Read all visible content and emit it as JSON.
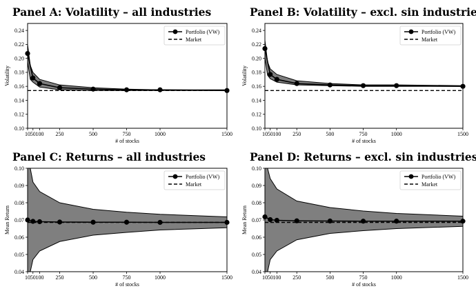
{
  "chart_data": [
    {
      "type": "line",
      "title": "Panel A: Volatility – all industries",
      "xlabel": "# of stocks",
      "ylabel": "Volatility",
      "xlim": [
        10,
        1500
      ],
      "ylim": [
        0.1,
        0.25
      ],
      "xticks": [
        "10",
        "50",
        "100",
        "250",
        "500",
        "750",
        "1000",
        "1500"
      ],
      "xtick_values": [
        10,
        50,
        100,
        250,
        500,
        750,
        1000,
        1500
      ],
      "yticks": [
        "0.10",
        "0.12",
        "0.14",
        "0.16",
        "0.18",
        "0.20",
        "0.22",
        "0.24"
      ],
      "ytick_values": [
        0.1,
        0.12,
        0.14,
        0.16,
        0.18,
        0.2,
        0.22,
        0.24
      ],
      "legend": {
        "position": "top-right",
        "entries": [
          "Portfolio (VW)",
          "Market"
        ]
      },
      "series": [
        {
          "name": "Portfolio (VW)",
          "style": "solid-marker",
          "x": [
            10,
            50,
            100,
            250,
            500,
            750,
            1000,
            1500
          ],
          "values": [
            0.207,
            0.172,
            0.164,
            0.158,
            0.156,
            0.155,
            0.155,
            0.154
          ]
        },
        {
          "name": "Market",
          "style": "dashed",
          "x": [
            10,
            1500
          ],
          "values": [
            0.154,
            0.154
          ]
        }
      ],
      "band": {
        "x": [
          10,
          30,
          50,
          100,
          250,
          500,
          750,
          1000,
          1500
        ],
        "upper": [
          0.22,
          0.19,
          0.18,
          0.17,
          0.162,
          0.158,
          0.156,
          0.155,
          0.155
        ],
        "lower": [
          0.195,
          0.17,
          0.166,
          0.159,
          0.155,
          0.154,
          0.154,
          0.154,
          0.154
        ]
      }
    },
    {
      "type": "line",
      "title": "Panel B: Volatility – excl. sin industries",
      "xlabel": "# of stocks",
      "ylabel": "Volatility",
      "xlim": [
        10,
        1500
      ],
      "ylim": [
        0.1,
        0.25
      ],
      "xticks": [
        "10",
        "50",
        "100",
        "250",
        "500",
        "750",
        "1000",
        "1500"
      ],
      "xtick_values": [
        10,
        50,
        100,
        250,
        500,
        750,
        1000,
        1500
      ],
      "yticks": [
        "0.10",
        "0.12",
        "0.14",
        "0.16",
        "0.18",
        "0.20",
        "0.22",
        "0.24"
      ],
      "ytick_values": [
        0.1,
        0.12,
        0.14,
        0.16,
        0.18,
        0.2,
        0.22,
        0.24
      ],
      "legend": {
        "position": "top-right",
        "entries": [
          "Portfolio (VW)",
          "Market"
        ]
      },
      "series": [
        {
          "name": "Portfolio (VW)",
          "style": "solid-marker",
          "x": [
            10,
            50,
            100,
            250,
            500,
            750,
            1000,
            1500
          ],
          "values": [
            0.214,
            0.177,
            0.17,
            0.164,
            0.162,
            0.161,
            0.161,
            0.16
          ]
        },
        {
          "name": "Market",
          "style": "dashed",
          "x": [
            10,
            1500
          ],
          "values": [
            0.154,
            0.154
          ]
        }
      ],
      "band": {
        "x": [
          10,
          30,
          50,
          100,
          250,
          500,
          750,
          1000,
          1500
        ],
        "upper": [
          0.226,
          0.195,
          0.185,
          0.177,
          0.168,
          0.164,
          0.162,
          0.162,
          0.161
        ],
        "lower": [
          0.201,
          0.176,
          0.171,
          0.166,
          0.162,
          0.161,
          0.16,
          0.16,
          0.16
        ]
      }
    },
    {
      "type": "line",
      "title": "Panel C: Returns – all industries",
      "xlabel": "# of stocks",
      "ylabel": "Mean Return",
      "xlim": [
        10,
        1500
      ],
      "ylim": [
        0.04,
        0.1
      ],
      "xticks": [
        "10",
        "50",
        "100",
        "250",
        "500",
        "750",
        "1000",
        "1500"
      ],
      "xtick_values": [
        10,
        50,
        100,
        250,
        500,
        750,
        1000,
        1500
      ],
      "yticks": [
        "0.04",
        "0.05",
        "0.06",
        "0.07",
        "0.08",
        "0.09",
        "0.10"
      ],
      "ytick_values": [
        0.04,
        0.05,
        0.06,
        0.07,
        0.08,
        0.09,
        0.1
      ],
      "legend": {
        "position": "top-right",
        "entries": [
          "Portfolio (VW)",
          "Market"
        ]
      },
      "series": [
        {
          "name": "Portfolio (VW)",
          "style": "solid-marker",
          "x": [
            10,
            50,
            100,
            250,
            500,
            750,
            1000,
            1500
          ],
          "values": [
            0.07,
            0.0692,
            0.069,
            0.0688,
            0.0687,
            0.0687,
            0.0686,
            0.0686
          ]
        },
        {
          "name": "Market",
          "style": "dashed",
          "x": [
            10,
            1500
          ],
          "values": [
            0.0686,
            0.0686
          ]
        }
      ],
      "band": {
        "x": [
          10,
          30,
          50,
          100,
          250,
          500,
          750,
          1000,
          1500
        ],
        "upper": [
          0.1,
          0.1,
          0.092,
          0.0865,
          0.08,
          0.0762,
          0.0745,
          0.0733,
          0.0718
        ],
        "lower": [
          0.04,
          0.04,
          0.047,
          0.052,
          0.0575,
          0.0612,
          0.0628,
          0.0642,
          0.0655
        ]
      }
    },
    {
      "type": "line",
      "title": "Panel D: Returns – excl. sin industries",
      "xlabel": "# of stocks",
      "ylabel": "Mean Return",
      "xlim": [
        10,
        1500
      ],
      "ylim": [
        0.04,
        0.1
      ],
      "xticks": [
        "10",
        "50",
        "100",
        "250",
        "500",
        "750",
        "1000",
        "1500"
      ],
      "xtick_values": [
        10,
        50,
        100,
        250,
        500,
        750,
        1000,
        1500
      ],
      "yticks": [
        "0.04",
        "0.05",
        "0.06",
        "0.07",
        "0.08",
        "0.09",
        "0.10"
      ],
      "ytick_values": [
        0.04,
        0.05,
        0.06,
        0.07,
        0.08,
        0.09,
        0.1
      ],
      "legend": {
        "position": "top-right",
        "entries": [
          "Portfolio (VW)",
          "Market"
        ]
      },
      "series": [
        {
          "name": "Portfolio (VW)",
          "style": "solid-marker",
          "x": [
            10,
            50,
            100,
            250,
            500,
            750,
            1000,
            1500
          ],
          "values": [
            0.0718,
            0.0702,
            0.0698,
            0.0695,
            0.0694,
            0.0693,
            0.0693,
            0.0693
          ]
        },
        {
          "name": "Market",
          "style": "dashed",
          "x": [
            10,
            1500
          ],
          "values": [
            0.0686,
            0.0686
          ]
        }
      ],
      "band": {
        "x": [
          10,
          30,
          50,
          100,
          250,
          500,
          750,
          1000,
          1500
        ],
        "upper": [
          0.1,
          0.1,
          0.094,
          0.088,
          0.081,
          0.0772,
          0.0752,
          0.0738,
          0.0722
        ],
        "lower": [
          0.04,
          0.04,
          0.047,
          0.052,
          0.0585,
          0.0622,
          0.0638,
          0.065,
          0.0663
        ]
      }
    }
  ]
}
